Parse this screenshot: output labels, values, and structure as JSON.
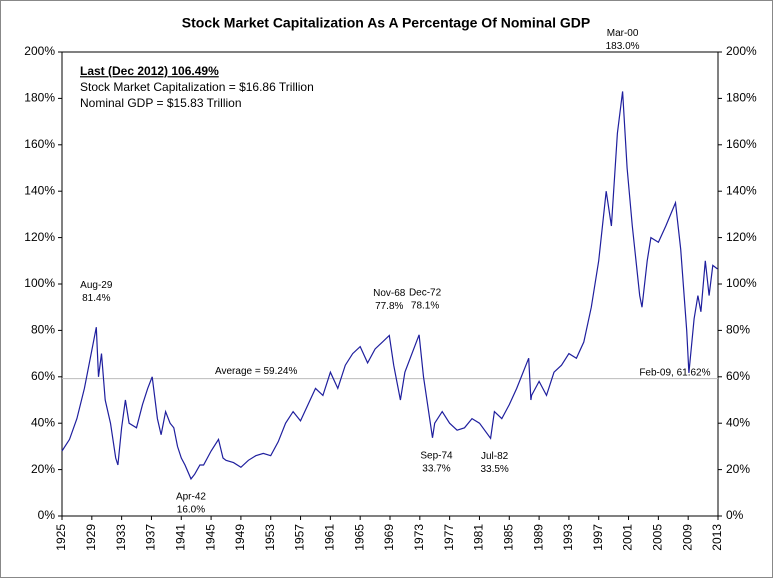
{
  "chart_data": {
    "type": "line",
    "title": "Stock Market Capitalization As A Percentage Of Nominal GDP",
    "info": [
      "Last (Dec 2012) 106.49%",
      "Stock Market Capitalization = $16.86 Trillion",
      "Nominal GDP = $15.83 Trillion"
    ],
    "average": {
      "value": 59.24,
      "label": "Average = 59.24%"
    },
    "xlim": [
      1925,
      2013
    ],
    "xticks": [
      1925,
      1929,
      1933,
      1937,
      1941,
      1945,
      1949,
      1953,
      1957,
      1961,
      1965,
      1969,
      1973,
      1977,
      1981,
      1985,
      1989,
      1993,
      1997,
      2001,
      2005,
      2009,
      2013
    ],
    "ylim": [
      0,
      200
    ],
    "yticks": [
      {
        "value": 0,
        "label": "0%"
      },
      {
        "value": 20,
        "label": "20%"
      },
      {
        "value": 40,
        "label": "40%"
      },
      {
        "value": 60,
        "label": "60%"
      },
      {
        "value": 80,
        "label": "80%"
      },
      {
        "value": 100,
        "label": "100%"
      },
      {
        "value": 120,
        "label": "120%"
      },
      {
        "value": 140,
        "label": "140%"
      },
      {
        "value": 160,
        "label": "160%"
      },
      {
        "value": 180,
        "label": "180%"
      },
      {
        "value": 200,
        "label": "200%"
      }
    ],
    "series": [
      {
        "color": "#1f1f9e",
        "x": [
          1925,
          1926,
          1927,
          1928,
          1929.6,
          1929.9,
          1930.3,
          1930.8,
          1931.5,
          1932.2,
          1932.5,
          1933,
          1933.5,
          1934,
          1935,
          1935.8,
          1936.5,
          1937.1,
          1937.8,
          1938.3,
          1938.9,
          1939.5,
          1940,
          1940.5,
          1941,
          1941.5,
          1942.3,
          1942.8,
          1943.5,
          1944,
          1945,
          1946,
          1946.6,
          1947,
          1948,
          1949,
          1950,
          1951,
          1952,
          1953,
          1954,
          1955,
          1956,
          1957,
          1958,
          1959,
          1960,
          1961,
          1962,
          1963,
          1964,
          1965,
          1966,
          1967,
          1968.9,
          1969.5,
          1970.4,
          1971,
          1972.9,
          1973.5,
          1974.7,
          1975,
          1976,
          1977,
          1978,
          1979,
          1980,
          1981,
          1982.5,
          1983,
          1984,
          1985,
          1986,
          1987.6,
          1987.9,
          1988,
          1989,
          1990,
          1991,
          1992,
          1993,
          1994,
          1995,
          1996,
          1997,
          1998,
          1998.7,
          1999.5,
          2000.2,
          2000.8,
          2001.5,
          2002.5,
          2002.8,
          2003.5,
          2004,
          2005,
          2006,
          2007.3,
          2008,
          2008.8,
          2009.1,
          2009.8,
          2010.3,
          2010.7,
          2011.3,
          2011.8,
          2012.3,
          2012.92
        ],
        "values": [
          28,
          33,
          42,
          55,
          81.4,
          60,
          70,
          50,
          40,
          25,
          22,
          38,
          50,
          40,
          38,
          48,
          55,
          60,
          42,
          35,
          45,
          40,
          38,
          30,
          25,
          22,
          16.0,
          18,
          22,
          22,
          28,
          33,
          25,
          24,
          23,
          21,
          24,
          26,
          27,
          26,
          32,
          40,
          45,
          41,
          48,
          55,
          52,
          62,
          55,
          65,
          70,
          73,
          66,
          72,
          77.8,
          65,
          50,
          62,
          78.1,
          60,
          33.7,
          40,
          45,
          40,
          37,
          38,
          42,
          40,
          33.5,
          45,
          42,
          48,
          55,
          68,
          50,
          52,
          58,
          52,
          62,
          65,
          70,
          68,
          75,
          90,
          110,
          140,
          125,
          165,
          183.0,
          150,
          125,
          95,
          90,
          110,
          120,
          118,
          125,
          135,
          115,
          80,
          61.62,
          85,
          95,
          88,
          110,
          95,
          108,
          106.49
        ]
      }
    ],
    "annotations": [
      {
        "date": "Aug-29",
        "x": 1929.6,
        "value": 81.4,
        "label": "81.4%"
      },
      {
        "date": "Apr-42",
        "x": 1942.3,
        "value": 16.0,
        "label": "16.0%"
      },
      {
        "date": "Nov-68",
        "x": 1968.9,
        "value": 77.8,
        "label": "77.8%"
      },
      {
        "date": "Dec-72",
        "x": 1972.9,
        "value": 78.1,
        "label": "78.1%"
      },
      {
        "date": "Sep-74",
        "x": 1974.7,
        "value": 33.7,
        "label": "33.7%"
      },
      {
        "date": "Jul-82",
        "x": 1982.5,
        "value": 33.5,
        "label": "33.5%"
      },
      {
        "date": "Mar-00",
        "x": 2000.2,
        "value": 183.0,
        "label": "183.0%"
      },
      {
        "date": "Feb-09, 61.62%",
        "x": 2009.1,
        "value": 61.62
      }
    ]
  }
}
